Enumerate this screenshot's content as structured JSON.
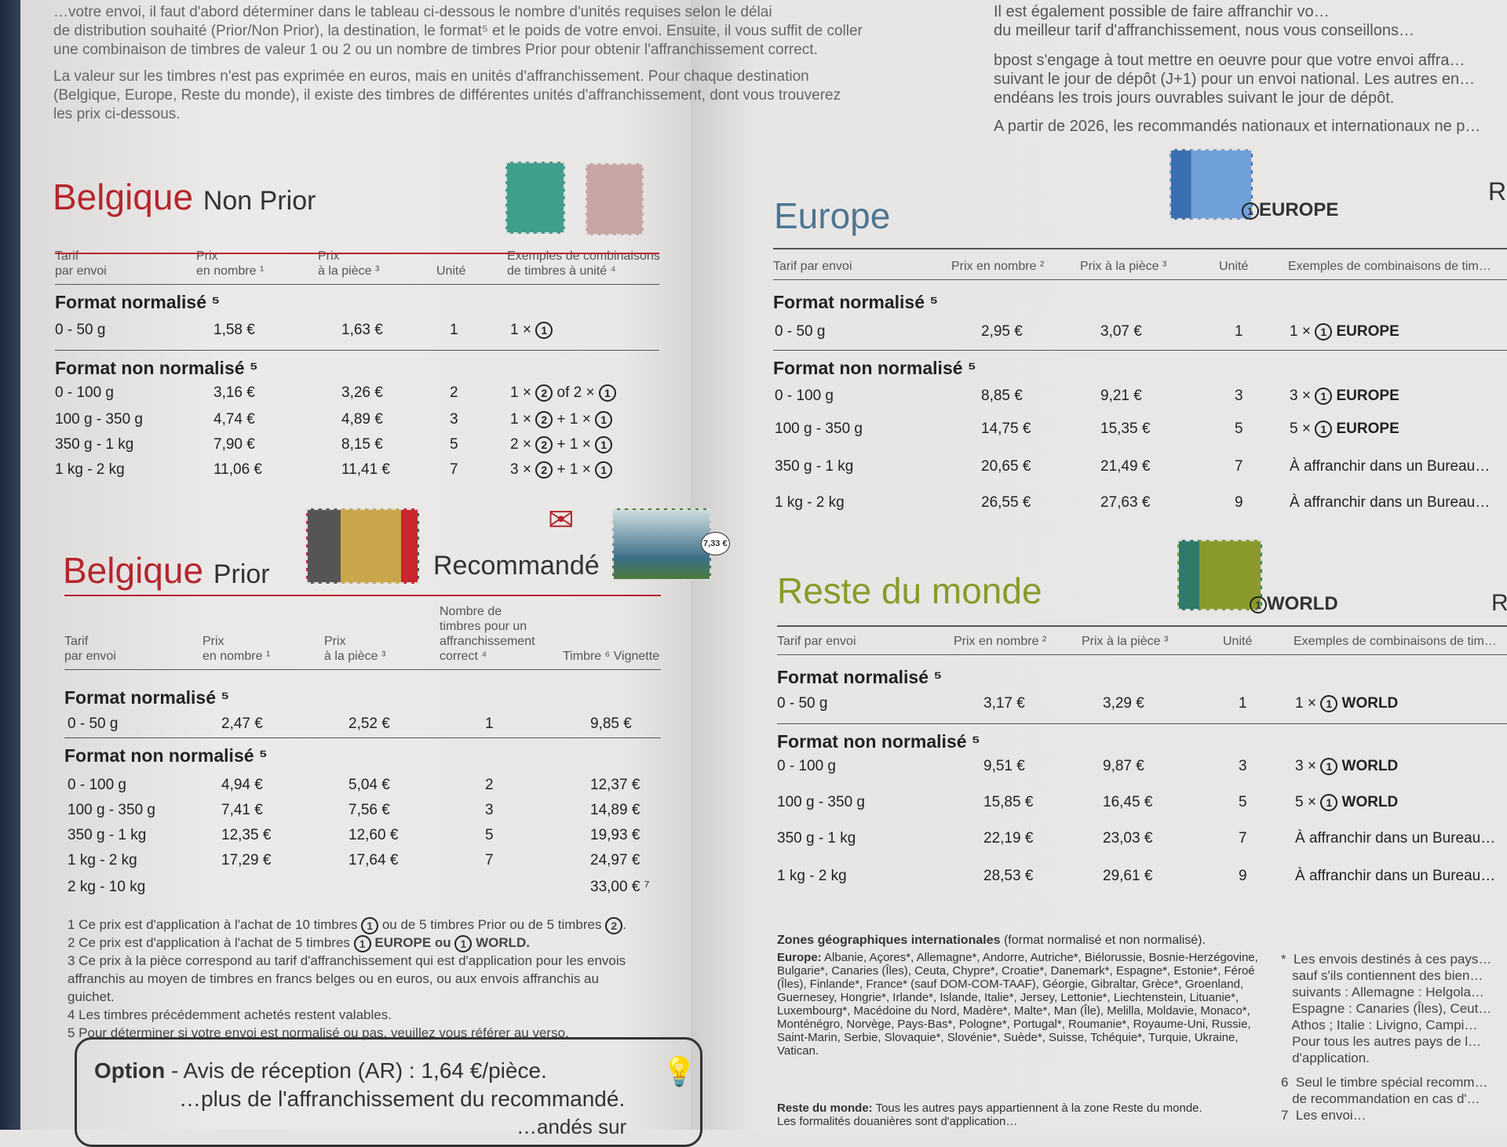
{
  "intro_left": [
    "…votre envoi, il faut d'abord déterminer dans le tableau ci-dessous le nombre d'unités requises selon le délai",
    "de distribution souhaité (Prior/Non Prior), la destination, le format⁵ et le poids de votre envoi. Ensuite, il vous suffit de coller",
    "une combinaison de timbres de valeur 1 ou 2 ou un nombre de timbres Prior pour obtenir l'affranchissement correct.",
    "La valeur sur les timbres n'est pas exprimée en euros, mais en unités d'affranchissement. Pour chaque destination",
    "(Belgique, Europe, Reste du monde), il existe des timbres de différentes unités d'affranchissement, dont vous trouverez",
    "les prix ci-dessous."
  ],
  "intro_right": [
    "Il est également possible de faire affranchir vo…",
    "du meilleur tarif d'affranchissement, nous vous conseillons…",
    "bpost s'engage à tout mettre en oeuvre pour que votre envoi affra…",
    "suivant le jour de dépôt (J+1) pour un envoi national. Les autres en…",
    "endéans les trois jours ouvrables suivant le jour de dépôt.",
    "A partir de 2026, les recommandés nationaux et internationaux ne p…"
  ],
  "colors": {
    "belgique": "#b5262d",
    "europe": "#4d7691",
    "world": "#8a9a2a"
  },
  "nonprior": {
    "title": "Belgique",
    "subtitle": "Non Prior",
    "headers": [
      "Tarif\npar envoi",
      "Prix\nen nombre ¹",
      "Prix\nà la pièce ³",
      "Unité",
      "Exemples de combinaisons\nde timbres à unité ⁴"
    ],
    "sec1": "Format normalisé ⁵",
    "sec2": "Format non normalisé ⁵",
    "rows1": [
      [
        "0 - 50 g",
        "1,58 €",
        "1,63 €",
        "1",
        "1 × ①"
      ]
    ],
    "rows2": [
      [
        "0 - 100 g",
        "3,16 €",
        "3,26 €",
        "2",
        "1 × ② of 2 × ①"
      ],
      [
        "100 g - 350 g",
        "4,74 €",
        "4,89 €",
        "3",
        "1 × ② + 1 × ①"
      ],
      [
        "350 g - 1 kg",
        "7,90 €",
        "8,15 €",
        "5",
        "2 × ② + 1 × ①"
      ],
      [
        "1 kg - 2 kg",
        "11,06 €",
        "11,41 €",
        "7",
        "3 × ② + 1 × ①"
      ]
    ]
  },
  "prior": {
    "title": "Belgique",
    "subtitle": "Prior",
    "recommande": "Recommandé",
    "stamp_value": "7,33 €",
    "headers": [
      "Tarif\npar envoi",
      "Prix\nen nombre ¹",
      "Prix\nà la pièce ³",
      "Nombre de\ntimbres pour un\naffranchissement\ncorrect ⁴",
      "Timbre ⁶ Vignette"
    ],
    "sec1": "Format normalisé ⁵",
    "sec2": "Format non normalisé ⁵",
    "rows1": [
      [
        "0 - 50 g",
        "2,47 €",
        "2,52 €",
        "1",
        "9,85 €"
      ]
    ],
    "rows2": [
      [
        "0 - 100 g",
        "4,94 €",
        "5,04 €",
        "2",
        "12,37 €"
      ],
      [
        "100 g - 350 g",
        "7,41 €",
        "7,56 €",
        "3",
        "14,89 €"
      ],
      [
        "350 g - 1 kg",
        "12,35 €",
        "12,60 €",
        "5",
        "19,93 €"
      ],
      [
        "1 kg - 2 kg",
        "17,29 €",
        "17,64 €",
        "7",
        "24,97 €"
      ],
      [
        "2 kg - 10 kg",
        "",
        "",
        "",
        "33,00 € ⁷"
      ]
    ]
  },
  "footnotes": [
    "1  Ce prix est d'application à l'achat de 10 timbres ① ou de 5 timbres Prior ou de 5 timbres ②.",
    "2  Ce prix est d'application à l'achat de 5 timbres ① EUROPE ou ① WORLD.",
    "3  Ce prix à la pièce correspond au tarif d'affranchissement qui est d'application pour les envois",
    "    affranchis au moyen de timbres en francs belges ou en euros, ou aux envois affranchis au",
    "    guichet.",
    "4  Les timbres précédemment achetés restent valables.",
    "5  Pour déterminer si votre envoi est normalisé ou pas, veuillez vous référer au verso."
  ],
  "option": {
    "label": "Option",
    "text": " - Avis de réception (AR) : 1,64 €/pièce.",
    "line2": "…plus de l'affranchissement du recommandé.",
    "line3": "…andés sur"
  },
  "europe": {
    "title": "Europe",
    "stamp_label": "EUROPE",
    "edge_letter": "R",
    "headers": [
      "Tarif par envoi",
      "Prix en nombre ²",
      "Prix à la pièce ³",
      "Unité",
      "Exemples de combinaisons de tim…"
    ],
    "sec1": "Format normalisé ⁵",
    "sec2": "Format non normalisé ⁵",
    "rows1": [
      [
        "0 - 50 g",
        "2,95 €",
        "3,07 €",
        "1",
        "1 × ① EUROPE"
      ]
    ],
    "rows2": [
      [
        "0 - 100 g",
        "8,85 €",
        "9,21 €",
        "3",
        "3 × ① EUROPE"
      ],
      [
        "100 g - 350 g",
        "14,75 €",
        "15,35 €",
        "5",
        "5 × ① EUROPE"
      ],
      [
        "350 g - 1 kg",
        "20,65 €",
        "21,49 €",
        "7",
        "À affranchir dans un Bureau…"
      ],
      [
        "1 kg - 2 kg",
        "26,55 €",
        "27,63 €",
        "9",
        "À affranchir dans un Bureau…"
      ]
    ]
  },
  "world": {
    "title": "Reste du monde",
    "stamp_label": "WORLD",
    "edge_letter": "R",
    "headers": [
      "Tarif par envoi",
      "Prix en nombre ²",
      "Prix à la pièce ³",
      "Unité",
      "Exemples de combinaisons de tim…"
    ],
    "sec1": "Format normalisé ⁵",
    "sec2": "Format non normalisé ⁵",
    "rows1": [
      [
        "0 - 50 g",
        "3,17 €",
        "3,29 €",
        "1",
        "1 × ① WORLD"
      ]
    ],
    "rows2": [
      [
        "0 - 100 g",
        "9,51 €",
        "9,87 €",
        "3",
        "3 × ① WORLD"
      ],
      [
        "100 g - 350 g",
        "15,85 €",
        "16,45 €",
        "5",
        "5 × ① WORLD"
      ],
      [
        "350 g - 1 kg",
        "22,19 €",
        "23,03 €",
        "7",
        "À affranchir dans un Bureau…"
      ],
      [
        "1 kg - 2 kg",
        "28,53 €",
        "29,61 €",
        "9",
        "À affranchir dans un Bureau…"
      ]
    ]
  },
  "zones": {
    "title": "Zones géographiques internationales",
    "title_rest": " (format normalisé et non normalisé).",
    "europe_label": "Europe:",
    "europe_text": " Albanie, Açores*, Allemagne*, Andorre, Autriche*, Biélorussie, Bosnie-Herzégovine, Bulgarie*, Canaries (Îles), Ceuta, Chypre*, Croatie*, Danemark*, Espagne*, Estonie*, Féroé (Îles), Finlande*, France* (sauf DOM-COM-TAAF), Géorgie, Gibraltar, Grèce*, Groenland, Guernesey, Hongrie*, Irlande*, Islande, Italie*, Jersey, Lettonie*, Liechtenstein, Lituanie*, Luxembourg*, Macédoine du Nord, Madère*, Malte*, Man (Île), Melilla, Moldavie, Monaco*, Monténégro, Norvège, Pays-Bas*, Pologne*, Portugal*, Roumanie*, Royaume-Uni, Russie, Saint-Marin, Serbie, Slovaquie*, Slovénie*, Suède*, Suisse, Tchéquie*, Turquie, Ukraine, Vatican.",
    "rest_label": "Reste du monde:",
    "rest_text": " Tous les autres pays appartiennent à la zone Reste du monde.",
    "rest_line2": "Les formalités douanières sont d'application…"
  },
  "side_notes": [
    "*  Les envois destinés à ces pays…",
    "   sauf s'ils contiennent des bien…",
    "   suivants : Allemagne : Helgola…",
    "   Espagne : Canaries (Îles), Ceut…",
    "   Athos ; Italie : Livigno, Campi…",
    "   Pour tous les autres pays de l…",
    "   d'application.",
    "6  Seul le timbre spécial recomm…",
    "   de recommandation en cas d'…",
    "7  Les envoi…"
  ]
}
